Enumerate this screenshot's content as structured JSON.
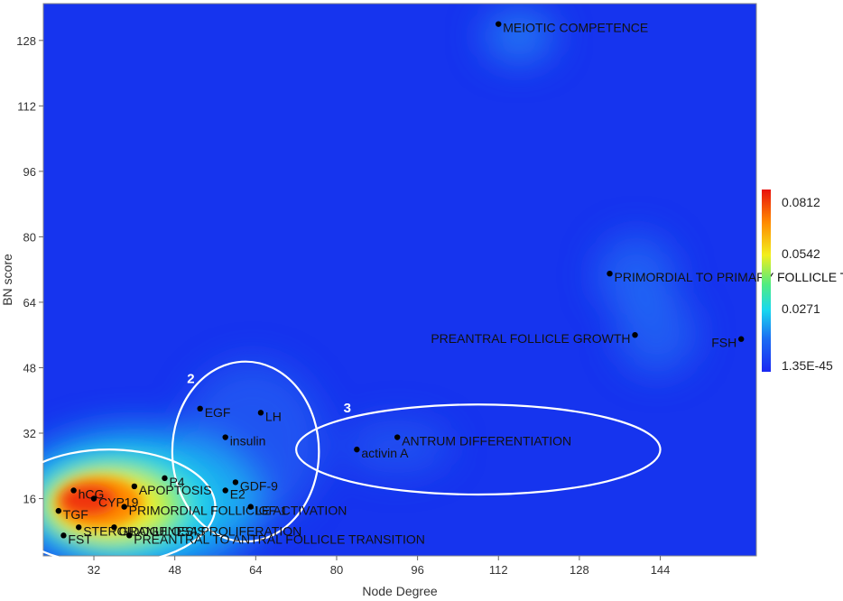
{
  "chart_data": {
    "type": "scatter",
    "xlabel": "Node Degree",
    "ylabel": "BN score",
    "xlim": [
      22,
      163
    ],
    "ylim": [
      2,
      137
    ],
    "x_ticks": [
      32,
      48,
      64,
      80,
      96,
      112,
      128,
      144
    ],
    "y_ticks": [
      16,
      32,
      48,
      64,
      80,
      96,
      112,
      128
    ],
    "grid": false,
    "colorbar": {
      "labels": [
        "0.0812",
        "0.0542",
        "0.0271",
        "1.35E-45"
      ],
      "colors": [
        "#e8120e",
        "#ff8a00",
        "#f2ef1c",
        "#50ec80",
        "#19d8ee",
        "#1a6cf2",
        "#1a28f2"
      ]
    },
    "points": [
      {
        "label": "MEIOTIC COMPETENCE",
        "x": 112,
        "y": 132
      },
      {
        "label": "PRIMORDIAL TO PRIMARY FOLLICLE TRANSITION",
        "x": 134,
        "y": 71
      },
      {
        "label": "PREANTRAL FOLLICLE GROWTH",
        "x": 139,
        "y": 56
      },
      {
        "label": "FSH",
        "x": 160,
        "y": 55
      },
      {
        "label": "EGF",
        "x": 53,
        "y": 38
      },
      {
        "label": "LH",
        "x": 65,
        "y": 37
      },
      {
        "label": "insulin",
        "x": 58,
        "y": 31
      },
      {
        "label": "ANTRUM DIFFERENTIATION",
        "x": 92,
        "y": 31
      },
      {
        "label": "activin A",
        "x": 84,
        "y": 28
      },
      {
        "label": "P4",
        "x": 46,
        "y": 21
      },
      {
        "label": "GDF-9",
        "x": 60,
        "y": 20
      },
      {
        "label": "E2",
        "x": 58,
        "y": 18
      },
      {
        "label": "hCG",
        "x": 28,
        "y": 18
      },
      {
        "label": "CYP19",
        "x": 32,
        "y": 16
      },
      {
        "label": "APOPTOSIS",
        "x": 40,
        "y": 19
      },
      {
        "label": "PRIMORDIAL FOLLICLE ACTIVATION",
        "x": 38,
        "y": 14
      },
      {
        "label": "TGF",
        "x": 25,
        "y": 13
      },
      {
        "label": "IGF-1",
        "x": 63,
        "y": 14
      },
      {
        "label": "STEROIDOGENESIS",
        "x": 29,
        "y": 9
      },
      {
        "label": "GRANULOSA PROLIFERATION",
        "x": 36,
        "y": 9
      },
      {
        "label": "FST",
        "x": 26,
        "y": 7
      },
      {
        "label": "PREANTRAL TO ANTRAL FOLLICLE TRANSITION",
        "x": 39,
        "y": 7
      }
    ],
    "clusters": [
      {
        "label": "1",
        "cx": 35,
        "cy": 14,
        "rx": 21,
        "ry": 14
      },
      {
        "label": "2",
        "cx": 62,
        "cy": 27.5,
        "rx": 14.5,
        "ry": 22
      },
      {
        "label": "3",
        "cx": 108,
        "cy": 28,
        "rx": 36,
        "ry": 11
      }
    ]
  }
}
